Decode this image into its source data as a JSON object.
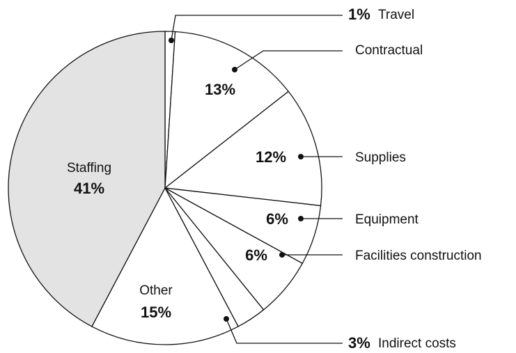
{
  "chart_data": {
    "type": "pie",
    "categories": [
      "Travel",
      "Contractual",
      "Supplies",
      "Equipment",
      "Facilities construction",
      "Indirect costs",
      "Other",
      "Staffing"
    ],
    "values": [
      1,
      13,
      12,
      6,
      6,
      3,
      15,
      41
    ],
    "value_labels": [
      "1%",
      "13%",
      "12%",
      "6%",
      "6%",
      "3%",
      "15%",
      "41%"
    ],
    "colors": [
      "#ffffff",
      "#ffffff",
      "#ffffff",
      "#ffffff",
      "#ffffff",
      "#ffffff",
      "#ffffff",
      "#e3e3e3"
    ]
  }
}
